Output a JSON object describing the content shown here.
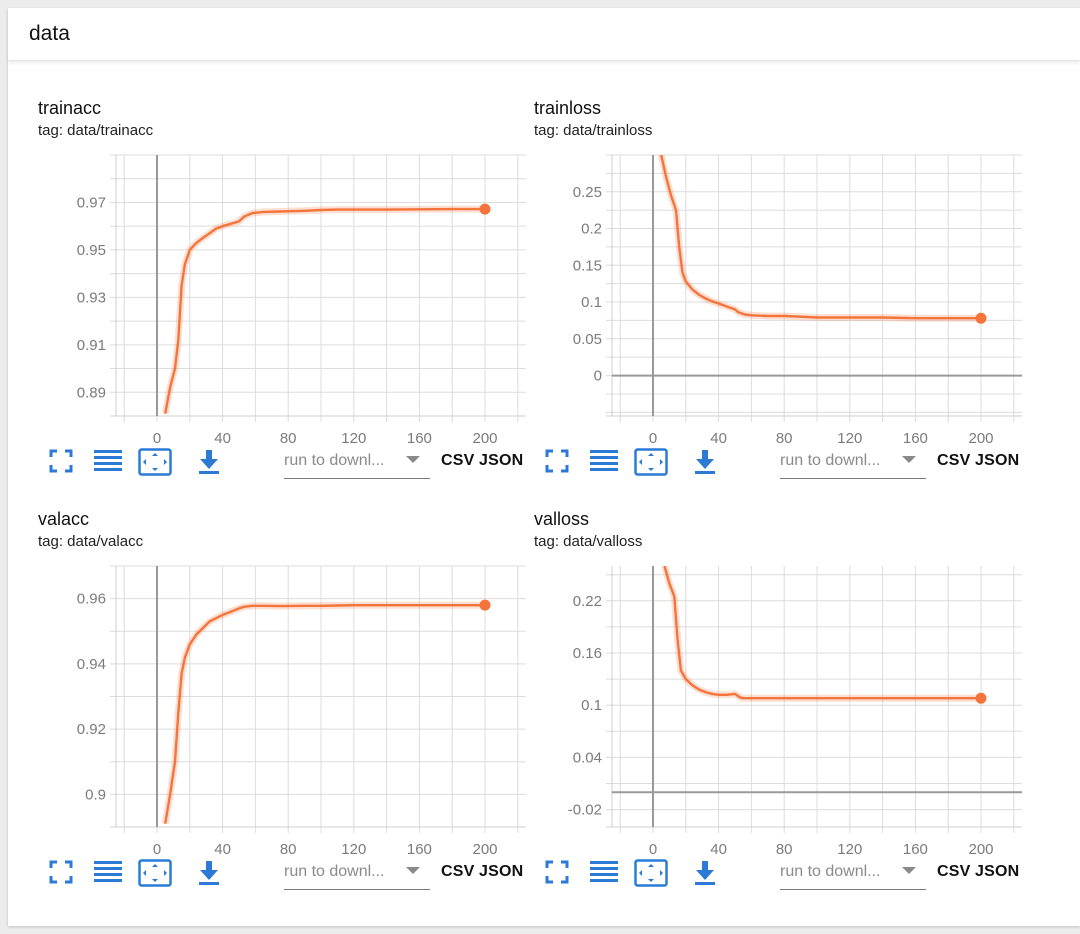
{
  "group": {
    "title": "data"
  },
  "toolbar": {
    "download_placeholder": "run to downl...",
    "csv_label": "CSV",
    "json_label": "JSON"
  },
  "colors": {
    "series": "#f4743b",
    "grid": "#dcdcdc",
    "axis": "#999999"
  },
  "chart_data": [
    {
      "type": "line",
      "title": "trainacc",
      "tag": "tag: data/trainacc",
      "xlim": [
        -25,
        225
      ],
      "ylim": [
        0.88,
        0.99
      ],
      "xticks": [
        0,
        40,
        80,
        120,
        160,
        200
      ],
      "yticks": [
        0.89,
        0.91,
        0.93,
        0.95,
        0.97
      ],
      "ytick_labels": [
        "0.89",
        "0.91",
        "0.93",
        "0.95",
        "0.97"
      ],
      "grid": true,
      "series": [
        {
          "x": [
            5,
            8,
            11,
            13,
            15,
            17,
            20,
            24,
            28,
            32,
            36,
            40,
            45,
            50,
            53,
            58,
            65,
            75,
            90,
            100,
            110,
            120,
            140,
            160,
            180,
            200
          ],
          "y": [
            0.881,
            0.892,
            0.9,
            0.912,
            0.935,
            0.944,
            0.95,
            0.953,
            0.955,
            0.957,
            0.959,
            0.96,
            0.961,
            0.962,
            0.964,
            0.9655,
            0.966,
            0.9662,
            0.9665,
            0.9668,
            0.967,
            0.967,
            0.967,
            0.9671,
            0.9672,
            0.9672
          ]
        }
      ]
    },
    {
      "type": "line",
      "title": "trainloss",
      "tag": "tag: data/trainloss",
      "xlim": [
        -25,
        225
      ],
      "ylim": [
        -0.055,
        0.3
      ],
      "xticks": [
        0,
        40,
        80,
        120,
        160,
        200
      ],
      "yticks": [
        0,
        0.05,
        0.1,
        0.15,
        0.2,
        0.25
      ],
      "ytick_labels": [
        "0",
        "0.05",
        "0.1",
        "0.15",
        "0.2",
        "0.25"
      ],
      "grid": true,
      "series": [
        {
          "x": [
            5,
            8,
            11,
            14,
            16,
            18,
            20,
            24,
            28,
            32,
            36,
            40,
            45,
            50,
            52,
            56,
            60,
            70,
            80,
            90,
            100,
            120,
            140,
            160,
            180,
            200
          ],
          "y": [
            0.3,
            0.27,
            0.245,
            0.225,
            0.175,
            0.14,
            0.128,
            0.117,
            0.11,
            0.105,
            0.101,
            0.098,
            0.094,
            0.09,
            0.086,
            0.083,
            0.082,
            0.081,
            0.081,
            0.08,
            0.079,
            0.079,
            0.079,
            0.078,
            0.078,
            0.078
          ]
        }
      ]
    },
    {
      "type": "line",
      "title": "valacc",
      "tag": "tag: data/valacc",
      "xlim": [
        -25,
        225
      ],
      "ylim": [
        0.89,
        0.97
      ],
      "xticks": [
        0,
        40,
        80,
        120,
        160,
        200
      ],
      "yticks": [
        0.9,
        0.92,
        0.94,
        0.96
      ],
      "ytick_labels": [
        "0.9",
        "0.92",
        "0.94",
        "0.96"
      ],
      "grid": true,
      "series": [
        {
          "x": [
            5,
            8,
            11,
            13,
            15,
            17,
            20,
            24,
            28,
            32,
            36,
            40,
            45,
            50,
            53,
            58,
            65,
            75,
            90,
            100,
            110,
            120,
            140,
            160,
            180,
            200
          ],
          "y": [
            0.891,
            0.9,
            0.91,
            0.925,
            0.937,
            0.942,
            0.946,
            0.949,
            0.951,
            0.953,
            0.954,
            0.955,
            0.956,
            0.957,
            0.9575,
            0.9578,
            0.9578,
            0.9577,
            0.9578,
            0.9578,
            0.9579,
            0.958,
            0.958,
            0.958,
            0.958,
            0.958
          ]
        }
      ]
    },
    {
      "type": "line",
      "title": "valloss",
      "tag": "tag: data/valloss",
      "xlim": [
        -25,
        225
      ],
      "ylim": [
        -0.04,
        0.26
      ],
      "xticks": [
        0,
        40,
        80,
        120,
        160,
        200
      ],
      "yticks": [
        -0.02,
        0.04,
        0.1,
        0.16,
        0.22
      ],
      "ytick_labels": [
        "-0.02",
        "0.04",
        "0.1",
        "0.16",
        "0.22"
      ],
      "grid": true,
      "series": [
        {
          "x": [
            7,
            10,
            13,
            15,
            17,
            20,
            24,
            28,
            32,
            36,
            40,
            45,
            50,
            53,
            55,
            60,
            70,
            80,
            90,
            100,
            110,
            120,
            140,
            160,
            180,
            200
          ],
          "y": [
            0.26,
            0.24,
            0.225,
            0.175,
            0.14,
            0.13,
            0.123,
            0.118,
            0.115,
            0.113,
            0.112,
            0.112,
            0.113,
            0.109,
            0.108,
            0.108,
            0.108,
            0.108,
            0.108,
            0.108,
            0.108,
            0.108,
            0.108,
            0.108,
            0.108,
            0.108
          ]
        }
      ]
    }
  ]
}
